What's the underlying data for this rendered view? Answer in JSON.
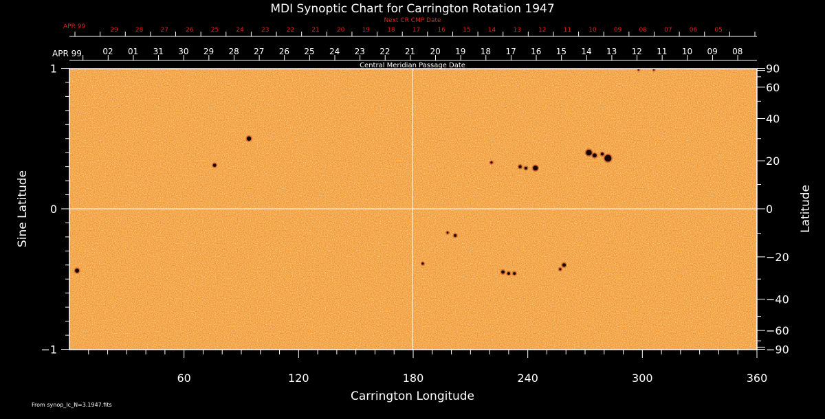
{
  "title": "MDI Synoptic Chart for Carrington Rotation 1947",
  "footer": "From synop_Ic_N=3.1947.fits",
  "colors": {
    "background": "#000000",
    "map": "#f0962e",
    "map_light": "#f6b35f",
    "grid": "#ffffff",
    "red_axis": "#e02020"
  },
  "chart_data": {
    "type": "heatmap",
    "xlabel": "Carrington Longitude",
    "ylabel_left": "Sine Latitude",
    "ylabel_right": "Latitude",
    "xlim": [
      0,
      360
    ],
    "ylim": [
      -1,
      1
    ],
    "x_ticks": [
      "60",
      "120",
      "180",
      "240",
      "300",
      "360"
    ],
    "y_ticks_left": [
      "1",
      "0",
      "−1"
    ],
    "y_ticks_right": [
      "90",
      "60",
      "40",
      "20",
      "0",
      "−20",
      "−40",
      "−60",
      "−90"
    ],
    "top_axis": {
      "label": "Central Meridian Passage Date",
      "month": "APR 99",
      "dates": [
        "02",
        "01",
        "31",
        "30",
        "29",
        "28",
        "27",
        "26",
        "25",
        "24",
        "23",
        "22",
        "21",
        "20",
        "19",
        "18",
        "17",
        "16",
        "15",
        "14",
        "13",
        "12",
        "11",
        "10",
        "09",
        "08"
      ]
    },
    "next_cr_axis": {
      "label": "Next CR CMP Date",
      "month": "APR 99",
      "dates": [
        "29",
        "28",
        "27",
        "26",
        "25",
        "24",
        "23",
        "22",
        "21",
        "20",
        "19",
        "18",
        "17",
        "16",
        "15",
        "14",
        "13",
        "12",
        "11",
        "10",
        "09",
        "08",
        "07",
        "06",
        "05"
      ]
    },
    "features": [
      {
        "lon": 94,
        "sinlat": 0.5,
        "size": 3.2
      },
      {
        "lon": 76,
        "sinlat": 0.31,
        "size": 2.4
      },
      {
        "lon": 4,
        "sinlat": -0.44,
        "size": 3.0
      },
      {
        "lon": 244,
        "sinlat": 0.29,
        "size": 3.6
      },
      {
        "lon": 236,
        "sinlat": 0.3,
        "size": 2.2
      },
      {
        "lon": 239,
        "sinlat": 0.29,
        "size": 2.0
      },
      {
        "lon": 272,
        "sinlat": 0.4,
        "size": 4.2
      },
      {
        "lon": 275,
        "sinlat": 0.38,
        "size": 3.0
      },
      {
        "lon": 282,
        "sinlat": 0.36,
        "size": 5.0
      },
      {
        "lon": 279,
        "sinlat": 0.39,
        "size": 2.2
      },
      {
        "lon": 221,
        "sinlat": 0.33,
        "size": 1.6
      },
      {
        "lon": 202,
        "sinlat": -0.19,
        "size": 2.0
      },
      {
        "lon": 198,
        "sinlat": -0.17,
        "size": 1.4
      },
      {
        "lon": 185,
        "sinlat": -0.39,
        "size": 1.6
      },
      {
        "lon": 227,
        "sinlat": -0.45,
        "size": 2.4
      },
      {
        "lon": 230,
        "sinlat": -0.46,
        "size": 2.0
      },
      {
        "lon": 233,
        "sinlat": -0.46,
        "size": 2.0
      },
      {
        "lon": 259,
        "sinlat": -0.4,
        "size": 2.6
      },
      {
        "lon": 257,
        "sinlat": -0.43,
        "size": 1.6
      },
      {
        "lon": 298,
        "sinlat": 0.99,
        "size": 1.2
      },
      {
        "lon": 306,
        "sinlat": 0.99,
        "size": 1.2
      }
    ]
  }
}
